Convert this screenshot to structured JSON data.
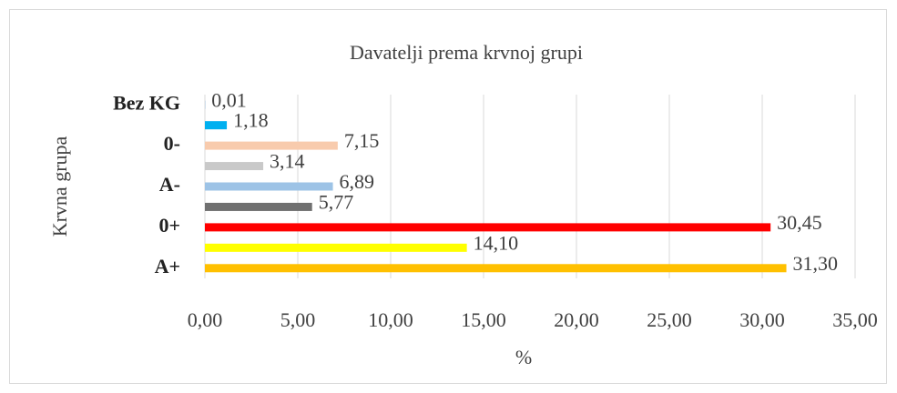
{
  "chart_data": {
    "type": "bar",
    "orientation": "horizontal",
    "title": "Davatelji prema krvnoj grupi",
    "x_label": "%",
    "y_label": "Krvna grupa",
    "categories": [
      "A+",
      null,
      "0+",
      null,
      "A-",
      null,
      "0-",
      null,
      "Bez KG"
    ],
    "values": [
      31.3,
      14.1,
      30.45,
      5.77,
      6.89,
      3.14,
      7.15,
      1.18,
      0.01
    ],
    "value_labels": [
      "31,30",
      "14,10",
      "30,45",
      "5,77",
      "6,89",
      "3,14",
      "7,15",
      "1,18",
      "0,01"
    ],
    "colors": [
      "#FFC000",
      "#FFFF00",
      "#FF0000",
      "#707070",
      "#9DC3E6",
      "#C9C9C9",
      "#F8CBAD",
      "#00B0F0",
      "#5B9BD5"
    ],
    "xlim": [
      0,
      35
    ],
    "xticks": [
      {
        "value": 0,
        "label": "0,00"
      },
      {
        "value": 5,
        "label": "5,00"
      },
      {
        "value": 10,
        "label": "10,00"
      },
      {
        "value": 15,
        "label": "15,00"
      },
      {
        "value": 20,
        "label": "20,00"
      },
      {
        "value": 25,
        "label": "25,00"
      },
      {
        "value": 30,
        "label": "30,00"
      },
      {
        "value": 35,
        "label": "35,00"
      }
    ],
    "grid": true
  }
}
